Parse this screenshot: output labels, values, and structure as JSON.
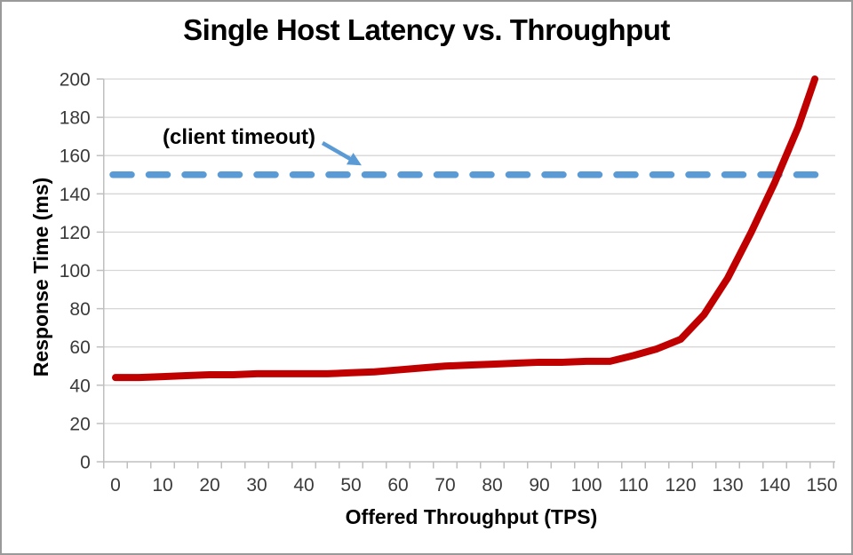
{
  "window": {
    "background": "#ffffff",
    "border_color": "#9a9a9a"
  },
  "chart_data": {
    "type": "line",
    "title": "Single Host Latency vs. Throughput",
    "xlabel": "Offered Throughput (TPS)",
    "ylabel": "Response Time (ms)",
    "xlim": [
      0,
      150
    ],
    "ylim": [
      0,
      200
    ],
    "x_ticks": [
      0,
      10,
      20,
      30,
      40,
      50,
      60,
      70,
      80,
      90,
      100,
      110,
      120,
      130,
      140,
      150
    ],
    "x_minor_tick_step": 5,
    "y_ticks": [
      0,
      20,
      40,
      60,
      80,
      100,
      120,
      140,
      160,
      180,
      200
    ],
    "grid": "horizontal",
    "legend": "none",
    "colors": {
      "gridline": "#d6d6d6",
      "axis_line": "#bfbfbf",
      "tick_label": "#3a3a3a"
    },
    "series": [
      {
        "name": "response-time",
        "color": "#c00000",
        "style": "solid",
        "points": [
          [
            0,
            44
          ],
          [
            5,
            44
          ],
          [
            10,
            44.5
          ],
          [
            15,
            45
          ],
          [
            20,
            45.5
          ],
          [
            25,
            45.5
          ],
          [
            30,
            46
          ],
          [
            35,
            46
          ],
          [
            40,
            46
          ],
          [
            45,
            46
          ],
          [
            50,
            46.5
          ],
          [
            55,
            47
          ],
          [
            60,
            48
          ],
          [
            65,
            49
          ],
          [
            70,
            50
          ],
          [
            75,
            50.5
          ],
          [
            80,
            51
          ],
          [
            85,
            51.5
          ],
          [
            90,
            52
          ],
          [
            95,
            52
          ],
          [
            100,
            52.5
          ],
          [
            105,
            52.5
          ],
          [
            110,
            55.5
          ],
          [
            115,
            59
          ],
          [
            120,
            64
          ],
          [
            125,
            77
          ],
          [
            130,
            96
          ],
          [
            135,
            120
          ],
          [
            140,
            146
          ],
          [
            145,
            175
          ],
          [
            148.5,
            200
          ]
        ],
        "clipped_at_top": true
      },
      {
        "name": "client-timeout-line",
        "color": "#5b9bd5",
        "style": "dashed",
        "y": 150
      }
    ],
    "annotation": {
      "label": "(client timeout)",
      "color": "#000000",
      "arrow_color": "#5b9bd5",
      "points_to_y": 150
    }
  }
}
